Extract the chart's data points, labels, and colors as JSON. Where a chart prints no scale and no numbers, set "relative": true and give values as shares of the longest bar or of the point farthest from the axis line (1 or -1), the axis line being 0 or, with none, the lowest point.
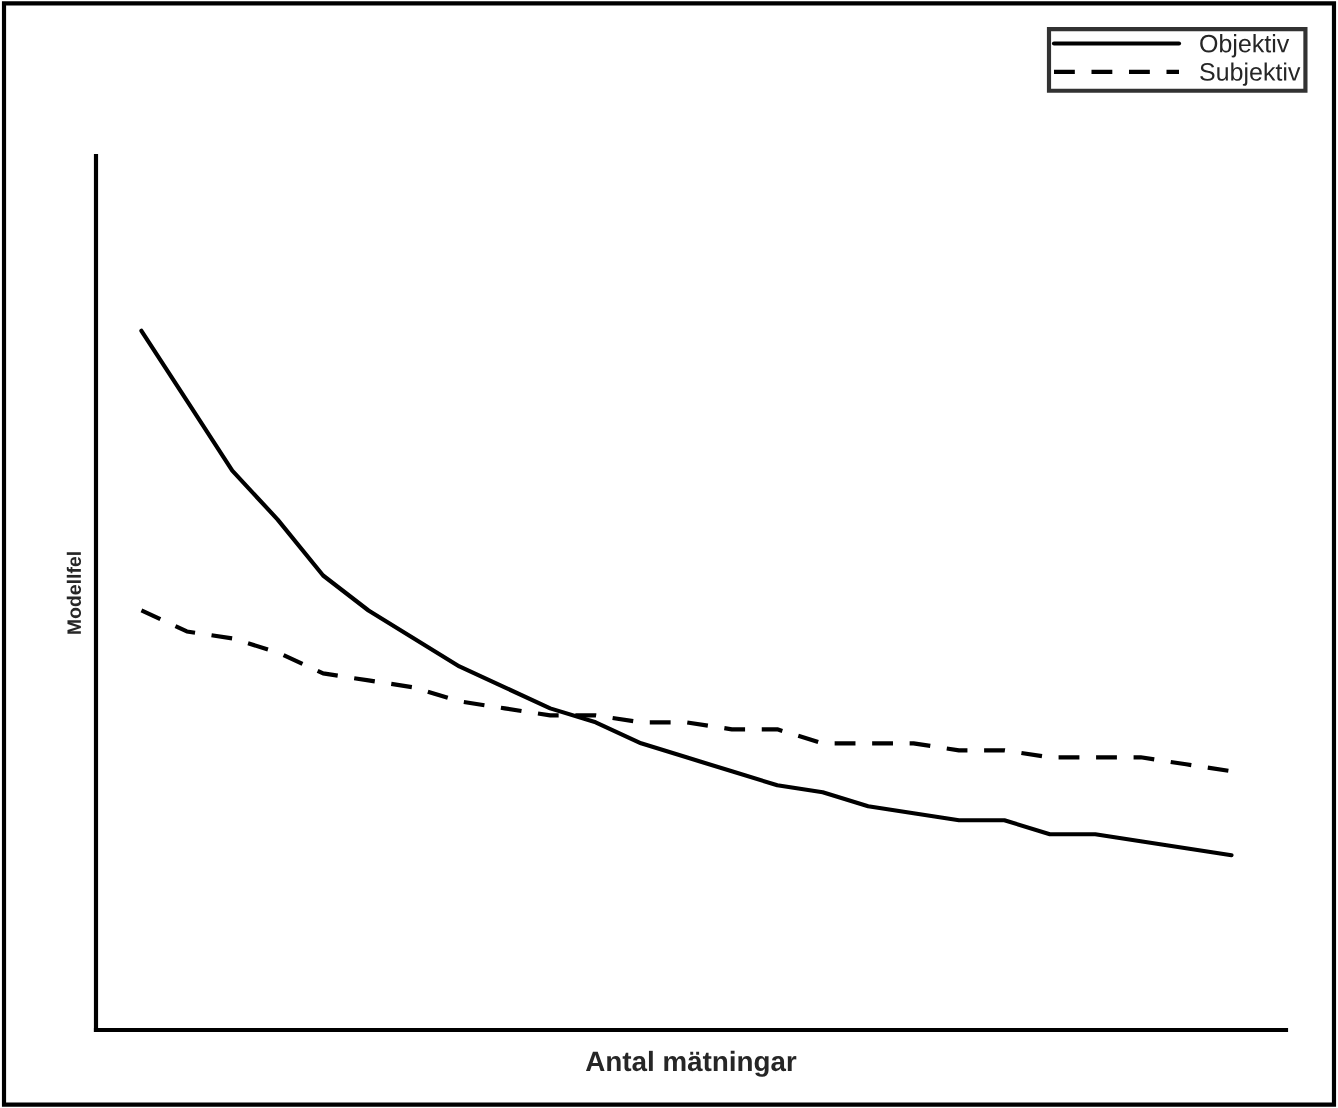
{
  "chart_data": {
    "type": "line",
    "relative": true,
    "xlabel": "Antal mätningar",
    "ylabel": "Modellfel",
    "legend": "top right",
    "grid": false,
    "categories": [
      null,
      null,
      null,
      null,
      null,
      null,
      null,
      null,
      null,
      null,
      null,
      null,
      null,
      null,
      null,
      null,
      null,
      null,
      null,
      null,
      null,
      null,
      null,
      null,
      null
    ],
    "series": [
      {
        "name": "Objektiv",
        "color": "#000000",
        "line_style": "solid",
        "values": [
          1.0,
          0.9,
          0.8,
          0.73,
          0.65,
          0.6,
          0.56,
          0.52,
          0.49,
          0.46,
          0.44,
          0.41,
          0.39,
          0.37,
          0.35,
          0.34,
          0.32,
          0.31,
          0.3,
          0.3,
          0.28,
          0.28,
          0.27,
          0.26,
          0.25
        ]
      },
      {
        "name": "Subjektiv",
        "color": "#000000",
        "line_style": "dashed",
        "values": [
          0.6,
          0.57,
          0.56,
          0.54,
          0.51,
          0.5,
          0.49,
          0.47,
          0.46,
          0.45,
          0.45,
          0.44,
          0.44,
          0.43,
          0.43,
          0.41,
          0.41,
          0.41,
          0.4,
          0.4,
          0.39,
          0.39,
          0.39,
          0.38,
          0.37
        ]
      }
    ]
  }
}
